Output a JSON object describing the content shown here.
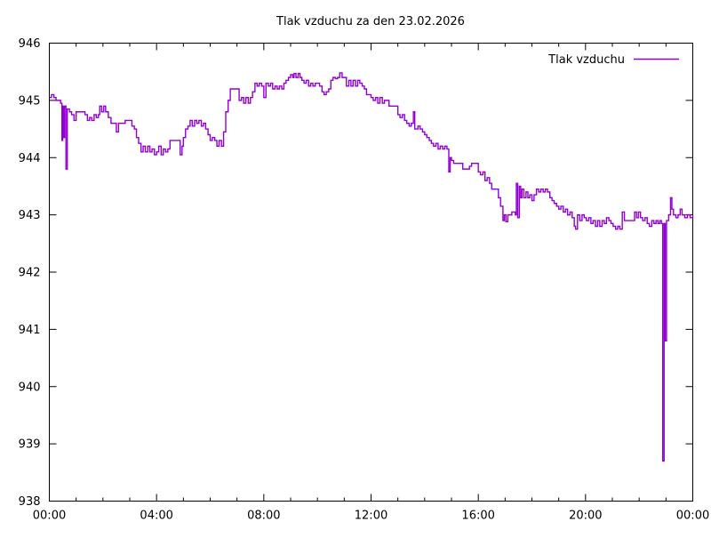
{
  "title": "Tlak vzduchu za den 23.02.2026",
  "legend": {
    "label": "Tlak vzduchu",
    "position": "top-right"
  },
  "colors": {
    "line": "#9400d3",
    "axis": "#000000",
    "background": "#ffffff",
    "text": "#000000"
  },
  "chart_data": {
    "type": "line",
    "title": "Tlak vzduchu za den 23.02.2026",
    "xlabel": "",
    "ylabel": "",
    "grid": false,
    "legend_position": "top-right",
    "xlim": [
      0,
      24
    ],
    "ylim": [
      938,
      946
    ],
    "x_tick_hours": [
      0,
      4,
      8,
      12,
      16,
      20,
      24
    ],
    "x_tick_labels": [
      "00:00",
      "04:00",
      "08:00",
      "12:00",
      "16:00",
      "20:00",
      "00:00"
    ],
    "x_minor_tick_every_hours": 1,
    "y_ticks": [
      938,
      939,
      940,
      941,
      942,
      943,
      944,
      945,
      946
    ],
    "series": [
      {
        "name": "Tlak vzduchu",
        "color": "#9400d3",
        "style": "steps",
        "points": [
          [
            0.0,
            945.05
          ],
          [
            0.08,
            945.1
          ],
          [
            0.17,
            945.05
          ],
          [
            0.25,
            945.0
          ],
          [
            0.33,
            945.0
          ],
          [
            0.42,
            944.95
          ],
          [
            0.47,
            944.3
          ],
          [
            0.5,
            944.9
          ],
          [
            0.53,
            944.35
          ],
          [
            0.57,
            944.9
          ],
          [
            0.62,
            943.8
          ],
          [
            0.67,
            944.85
          ],
          [
            0.75,
            944.8
          ],
          [
            0.83,
            944.75
          ],
          [
            0.92,
            944.65
          ],
          [
            1.0,
            944.8
          ],
          [
            1.17,
            944.8
          ],
          [
            1.33,
            944.75
          ],
          [
            1.42,
            944.65
          ],
          [
            1.5,
            944.7
          ],
          [
            1.58,
            944.65
          ],
          [
            1.67,
            944.75
          ],
          [
            1.75,
            944.7
          ],
          [
            1.83,
            944.75
          ],
          [
            1.88,
            944.9
          ],
          [
            1.95,
            944.8
          ],
          [
            2.03,
            944.9
          ],
          [
            2.1,
            944.8
          ],
          [
            2.2,
            944.7
          ],
          [
            2.3,
            944.6
          ],
          [
            2.42,
            944.6
          ],
          [
            2.5,
            944.45
          ],
          [
            2.58,
            944.6
          ],
          [
            2.75,
            944.6
          ],
          [
            2.83,
            944.65
          ],
          [
            3.0,
            944.65
          ],
          [
            3.08,
            944.55
          ],
          [
            3.17,
            944.5
          ],
          [
            3.25,
            944.35
          ],
          [
            3.33,
            944.25
          ],
          [
            3.42,
            944.1
          ],
          [
            3.5,
            944.2
          ],
          [
            3.58,
            944.1
          ],
          [
            3.67,
            944.2
          ],
          [
            3.75,
            944.1
          ],
          [
            3.83,
            944.15
          ],
          [
            3.92,
            944.05
          ],
          [
            4.0,
            944.1
          ],
          [
            4.08,
            944.2
          ],
          [
            4.17,
            944.05
          ],
          [
            4.25,
            944.15
          ],
          [
            4.33,
            944.1
          ],
          [
            4.42,
            944.15
          ],
          [
            4.5,
            944.3
          ],
          [
            4.67,
            944.3
          ],
          [
            4.83,
            944.3
          ],
          [
            4.88,
            944.05
          ],
          [
            4.95,
            944.2
          ],
          [
            5.0,
            944.35
          ],
          [
            5.08,
            944.5
          ],
          [
            5.17,
            944.55
          ],
          [
            5.25,
            944.65
          ],
          [
            5.33,
            944.55
          ],
          [
            5.42,
            944.65
          ],
          [
            5.5,
            944.6
          ],
          [
            5.58,
            944.65
          ],
          [
            5.67,
            944.55
          ],
          [
            5.75,
            944.6
          ],
          [
            5.83,
            944.5
          ],
          [
            5.92,
            944.4
          ],
          [
            6.0,
            944.3
          ],
          [
            6.08,
            944.35
          ],
          [
            6.17,
            944.3
          ],
          [
            6.25,
            944.2
          ],
          [
            6.33,
            944.3
          ],
          [
            6.42,
            944.2
          ],
          [
            6.5,
            944.45
          ],
          [
            6.58,
            944.8
          ],
          [
            6.67,
            945.0
          ],
          [
            6.75,
            945.2
          ],
          [
            7.0,
            945.2
          ],
          [
            7.08,
            945.0
          ],
          [
            7.17,
            945.05
          ],
          [
            7.25,
            944.95
          ],
          [
            7.33,
            945.05
          ],
          [
            7.42,
            944.95
          ],
          [
            7.5,
            945.05
          ],
          [
            7.58,
            945.15
          ],
          [
            7.67,
            945.3
          ],
          [
            7.75,
            945.25
          ],
          [
            7.83,
            945.3
          ],
          [
            7.92,
            945.25
          ],
          [
            8.0,
            945.05
          ],
          [
            8.08,
            945.3
          ],
          [
            8.17,
            945.25
          ],
          [
            8.25,
            945.3
          ],
          [
            8.33,
            945.2
          ],
          [
            8.42,
            945.25
          ],
          [
            8.5,
            945.2
          ],
          [
            8.58,
            945.25
          ],
          [
            8.67,
            945.2
          ],
          [
            8.75,
            945.3
          ],
          [
            8.83,
            945.35
          ],
          [
            8.92,
            945.4
          ],
          [
            9.0,
            945.45
          ],
          [
            9.08,
            945.4
          ],
          [
            9.13,
            945.47
          ],
          [
            9.2,
            945.4
          ],
          [
            9.28,
            945.47
          ],
          [
            9.35,
            945.4
          ],
          [
            9.42,
            945.35
          ],
          [
            9.5,
            945.3
          ],
          [
            9.58,
            945.35
          ],
          [
            9.67,
            945.25
          ],
          [
            9.75,
            945.3
          ],
          [
            9.83,
            945.25
          ],
          [
            9.92,
            945.3
          ],
          [
            10.0,
            945.3
          ],
          [
            10.08,
            945.25
          ],
          [
            10.17,
            945.15
          ],
          [
            10.25,
            945.1
          ],
          [
            10.33,
            945.15
          ],
          [
            10.42,
            945.2
          ],
          [
            10.5,
            945.35
          ],
          [
            10.58,
            945.4
          ],
          [
            10.67,
            945.38
          ],
          [
            10.75,
            945.4
          ],
          [
            10.83,
            945.48
          ],
          [
            10.92,
            945.4
          ],
          [
            11.0,
            945.4
          ],
          [
            11.08,
            945.25
          ],
          [
            11.17,
            945.35
          ],
          [
            11.25,
            945.25
          ],
          [
            11.33,
            945.35
          ],
          [
            11.42,
            945.25
          ],
          [
            11.5,
            945.35
          ],
          [
            11.58,
            945.3
          ],
          [
            11.67,
            945.25
          ],
          [
            11.75,
            945.2
          ],
          [
            11.83,
            945.1
          ],
          [
            11.92,
            945.1
          ],
          [
            12.0,
            945.05
          ],
          [
            12.08,
            945.0
          ],
          [
            12.17,
            945.05
          ],
          [
            12.25,
            944.95
          ],
          [
            12.33,
            945.05
          ],
          [
            12.42,
            944.95
          ],
          [
            12.5,
            945.0
          ],
          [
            12.58,
            945.0
          ],
          [
            12.67,
            944.9
          ],
          [
            12.92,
            944.9
          ],
          [
            13.0,
            944.75
          ],
          [
            13.08,
            944.7
          ],
          [
            13.17,
            944.75
          ],
          [
            13.25,
            944.65
          ],
          [
            13.33,
            944.6
          ],
          [
            13.42,
            944.55
          ],
          [
            13.5,
            944.6
          ],
          [
            13.58,
            944.8
          ],
          [
            13.63,
            944.5
          ],
          [
            13.75,
            944.55
          ],
          [
            13.83,
            944.5
          ],
          [
            13.92,
            944.45
          ],
          [
            14.0,
            944.4
          ],
          [
            14.08,
            944.35
          ],
          [
            14.17,
            944.3
          ],
          [
            14.25,
            944.25
          ],
          [
            14.33,
            944.2
          ],
          [
            14.42,
            944.25
          ],
          [
            14.5,
            944.15
          ],
          [
            14.58,
            944.2
          ],
          [
            14.67,
            944.15
          ],
          [
            14.75,
            944.2
          ],
          [
            14.83,
            944.15
          ],
          [
            14.9,
            943.75
          ],
          [
            14.95,
            944.0
          ],
          [
            15.0,
            943.95
          ],
          [
            15.08,
            943.9
          ],
          [
            15.33,
            943.9
          ],
          [
            15.42,
            943.8
          ],
          [
            15.58,
            943.8
          ],
          [
            15.67,
            943.85
          ],
          [
            15.75,
            943.9
          ],
          [
            15.92,
            943.9
          ],
          [
            16.0,
            943.75
          ],
          [
            16.08,
            943.7
          ],
          [
            16.17,
            943.75
          ],
          [
            16.25,
            943.6
          ],
          [
            16.33,
            943.65
          ],
          [
            16.42,
            943.55
          ],
          [
            16.5,
            943.45
          ],
          [
            16.67,
            943.45
          ],
          [
            16.75,
            943.3
          ],
          [
            16.83,
            943.15
          ],
          [
            16.92,
            942.9
          ],
          [
            16.97,
            943.0
          ],
          [
            17.03,
            942.88
          ],
          [
            17.1,
            943.0
          ],
          [
            17.25,
            943.05
          ],
          [
            17.38,
            943.0
          ],
          [
            17.42,
            943.55
          ],
          [
            17.47,
            942.95
          ],
          [
            17.53,
            943.5
          ],
          [
            17.58,
            943.3
          ],
          [
            17.63,
            943.45
          ],
          [
            17.7,
            943.3
          ],
          [
            17.78,
            943.4
          ],
          [
            17.85,
            943.3
          ],
          [
            17.92,
            943.35
          ],
          [
            18.0,
            943.25
          ],
          [
            18.08,
            943.35
          ],
          [
            18.17,
            943.45
          ],
          [
            18.25,
            943.4
          ],
          [
            18.33,
            943.45
          ],
          [
            18.42,
            943.4
          ],
          [
            18.5,
            943.45
          ],
          [
            18.58,
            943.4
          ],
          [
            18.67,
            943.3
          ],
          [
            18.75,
            943.25
          ],
          [
            18.83,
            943.2
          ],
          [
            18.92,
            943.15
          ],
          [
            19.0,
            943.1
          ],
          [
            19.08,
            943.15
          ],
          [
            19.17,
            943.05
          ],
          [
            19.25,
            943.1
          ],
          [
            19.33,
            943.0
          ],
          [
            19.42,
            943.05
          ],
          [
            19.5,
            942.95
          ],
          [
            19.58,
            942.8
          ],
          [
            19.63,
            942.75
          ],
          [
            19.7,
            943.0
          ],
          [
            19.78,
            942.9
          ],
          [
            19.87,
            943.0
          ],
          [
            19.95,
            942.95
          ],
          [
            20.03,
            942.9
          ],
          [
            20.12,
            942.95
          ],
          [
            20.2,
            942.85
          ],
          [
            20.28,
            942.9
          ],
          [
            20.37,
            942.8
          ],
          [
            20.45,
            942.9
          ],
          [
            20.53,
            942.8
          ],
          [
            20.62,
            942.9
          ],
          [
            20.7,
            942.85
          ],
          [
            20.78,
            942.95
          ],
          [
            20.87,
            942.9
          ],
          [
            20.95,
            942.85
          ],
          [
            21.03,
            942.8
          ],
          [
            21.12,
            942.75
          ],
          [
            21.2,
            942.8
          ],
          [
            21.28,
            942.75
          ],
          [
            21.37,
            943.05
          ],
          [
            21.45,
            942.9
          ],
          [
            21.6,
            942.9
          ],
          [
            21.75,
            942.9
          ],
          [
            21.83,
            943.05
          ],
          [
            21.9,
            942.95
          ],
          [
            21.97,
            943.05
          ],
          [
            22.05,
            942.95
          ],
          [
            22.13,
            942.9
          ],
          [
            22.22,
            942.95
          ],
          [
            22.3,
            942.85
          ],
          [
            22.38,
            942.8
          ],
          [
            22.47,
            942.9
          ],
          [
            22.55,
            942.85
          ],
          [
            22.63,
            942.9
          ],
          [
            22.7,
            942.85
          ],
          [
            22.77,
            942.9
          ],
          [
            22.83,
            942.85
          ],
          [
            22.88,
            938.7
          ],
          [
            22.93,
            942.85
          ],
          [
            22.97,
            940.8
          ],
          [
            23.02,
            942.9
          ],
          [
            23.1,
            943.0
          ],
          [
            23.17,
            943.3
          ],
          [
            23.22,
            943.1
          ],
          [
            23.28,
            943.0
          ],
          [
            23.37,
            942.95
          ],
          [
            23.45,
            943.0
          ],
          [
            23.53,
            943.1
          ],
          [
            23.6,
            943.0
          ],
          [
            23.7,
            942.95
          ],
          [
            23.8,
            943.0
          ],
          [
            23.9,
            942.95
          ],
          [
            24.0,
            943.0
          ]
        ]
      }
    ]
  }
}
